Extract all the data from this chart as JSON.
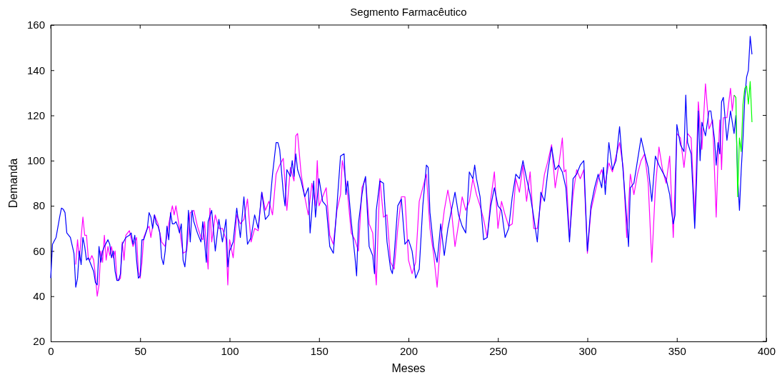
{
  "chart_data": {
    "type": "line",
    "title": "Segmento Farmacêutico",
    "xlabel": "Meses",
    "ylabel": "Demanda",
    "xlim": [
      0,
      400
    ],
    "xticks": [
      0,
      50,
      100,
      150,
      200,
      250,
      300,
      350,
      400
    ],
    "ylim": [
      20,
      160
    ],
    "yticks": [
      20,
      40,
      60,
      80,
      100,
      120,
      140,
      160
    ],
    "grid": false,
    "marker": "none",
    "line_style": "solid",
    "series": [
      {
        "color": "#ff00ff",
        "x": [
          14,
          15,
          16,
          17,
          18,
          19,
          20,
          21,
          22,
          23,
          24,
          25,
          26,
          27,
          28,
          29,
          30,
          31,
          32,
          33,
          34,
          35,
          36,
          37,
          38,
          39,
          40,
          41,
          42,
          44,
          46,
          48,
          49,
          50,
          51,
          52,
          54,
          55,
          56,
          58,
          60,
          62,
          64,
          66,
          68,
          69,
          70,
          72,
          74,
          76,
          78,
          80,
          82,
          84,
          85,
          86,
          88,
          89,
          90,
          92,
          94,
          96,
          98,
          99,
          100,
          102,
          104,
          106,
          108,
          110,
          112,
          114,
          116,
          118,
          120,
          122,
          124,
          126,
          128,
          130,
          131,
          132,
          134,
          136,
          137,
          138,
          140,
          142,
          144,
          146,
          148,
          149,
          150,
          152,
          154,
          156,
          158,
          160,
          162,
          163,
          164,
          166,
          168,
          170,
          172,
          174,
          176,
          178,
          180,
          182,
          184,
          186,
          188,
          190,
          192,
          194,
          196,
          198,
          200,
          202,
          204,
          206,
          208,
          210,
          212,
          214,
          216,
          218,
          220,
          222,
          224,
          226,
          228,
          230,
          232,
          234,
          236,
          238,
          240,
          242,
          244,
          246,
          248,
          250,
          252,
          254,
          256,
          258,
          260,
          262,
          264,
          266,
          268,
          270,
          272,
          274,
          276,
          278,
          280,
          282,
          284,
          286,
          287,
          288,
          290,
          292,
          294,
          296,
          298,
          300,
          302,
          304,
          306,
          308,
          310,
          312,
          314,
          316,
          318,
          320,
          322,
          324,
          326,
          328,
          330,
          332,
          334,
          336,
          338,
          340,
          342,
          344,
          346,
          348,
          350,
          352,
          354,
          356,
          358,
          360,
          362,
          364,
          366,
          368,
          370,
          372,
          373,
          374,
          375,
          376,
          378,
          380,
          381,
          382
        ],
        "values": [
          54,
          65,
          56,
          66,
          75,
          67,
          67,
          57,
          56,
          58,
          56,
          49,
          40,
          45,
          60,
          55,
          67,
          56,
          62,
          58,
          62,
          57,
          60,
          48,
          47,
          48,
          64,
          56,
          67,
          69,
          62,
          66,
          51,
          48,
          55,
          66,
          70,
          71,
          66,
          76,
          72,
          64,
          62,
          72,
          80,
          76,
          80,
          70,
          59,
          60,
          77,
          78,
          71,
          66,
          65,
          73,
          52,
          79,
          64,
          76,
          70,
          70,
          65,
          45,
          65,
          57,
          76,
          72,
          74,
          83,
          64,
          70,
          69,
          86,
          78,
          82,
          76,
          94,
          98,
          101,
          90,
          78,
          97,
          91,
          111,
          112,
          94,
          84,
          76,
          90,
          80,
          100,
          80,
          84,
          88,
          67,
          63,
          78,
          85,
          100,
          96,
          85,
          68,
          65,
          60,
          88,
          92,
          72,
          68,
          45,
          92,
          75,
          76,
          55,
          52,
          70,
          84,
          84,
          56,
          50,
          55,
          82,
          88,
          94,
          70,
          59,
          44,
          65,
          78,
          87,
          78,
          62,
          72,
          84,
          78,
          82,
          92,
          85,
          80,
          74,
          66,
          83,
          95,
          70,
          82,
          76,
          71,
          72,
          92,
          86,
          98,
          82,
          95,
          70,
          70,
          82,
          94,
          100,
          107,
          88,
          98,
          110,
          95,
          96,
          66,
          85,
          96,
          92,
          96,
          59,
          78,
          85,
          92,
          96,
          90,
          99,
          95,
          102,
          108,
          97,
          66,
          94,
          85,
          94,
          100,
          103,
          90,
          55,
          88,
          106,
          96,
          90,
          102,
          66,
          112,
          110,
          97,
          112,
          110,
          75,
          126,
          105,
          134,
          114,
          118,
          75,
          100,
          118,
          96,
          119,
          119,
          132,
          122,
          129
        ]
      },
      {
        "color": "#0000ff",
        "x": [
          0,
          1,
          3,
          5,
          6,
          7,
          8,
          9,
          11,
          13,
          14,
          15,
          16,
          17,
          18,
          19,
          20,
          21,
          22,
          23,
          24,
          25,
          26,
          27,
          28,
          29,
          30,
          32,
          33,
          34,
          35,
          36,
          37,
          38,
          39,
          40,
          42,
          44,
          45,
          46,
          47,
          48,
          49,
          50,
          51,
          52,
          54,
          55,
          56,
          57,
          58,
          59,
          60,
          61,
          62,
          63,
          64,
          65,
          66,
          67,
          68,
          69,
          70,
          71,
          72,
          73,
          74,
          75,
          76,
          77,
          78,
          79,
          80,
          82,
          84,
          85,
          86,
          87,
          88,
          90,
          92,
          94,
          96,
          98,
          99,
          100,
          102,
          104,
          106,
          108,
          110,
          112,
          114,
          116,
          118,
          120,
          122,
          124,
          126,
          127,
          128,
          130,
          131,
          132,
          134,
          135,
          136,
          137,
          138,
          140,
          142,
          144,
          145,
          146,
          147,
          148,
          150,
          152,
          154,
          156,
          158,
          160,
          162,
          164,
          165,
          166,
          168,
          170,
          171,
          172,
          174,
          175,
          176,
          178,
          180,
          181,
          182,
          184,
          186,
          188,
          190,
          191,
          192,
          194,
          196,
          198,
          200,
          202,
          204,
          206,
          208,
          210,
          211,
          212,
          214,
          216,
          218,
          220,
          222,
          224,
          226,
          228,
          230,
          232,
          234,
          236,
          237,
          238,
          240,
          242,
          244,
          246,
          248,
          250,
          252,
          254,
          256,
          258,
          260,
          262,
          264,
          266,
          268,
          270,
          272,
          274,
          276,
          278,
          280,
          282,
          284,
          286,
          288,
          290,
          292,
          294,
          296,
          298,
          300,
          302,
          304,
          306,
          308,
          309,
          310,
          312,
          314,
          316,
          318,
          320,
          322,
          323,
          324,
          326,
          328,
          330,
          332,
          334,
          336,
          338,
          340,
          342,
          344,
          346,
          347,
          348,
          349,
          350,
          352,
          354,
          355,
          356,
          358,
          360,
          361,
          362,
          363,
          364,
          366,
          368,
          369,
          371,
          372,
          373,
          374,
          375,
          376,
          378,
          380,
          382,
          383,
          384,
          385,
          386,
          387,
          388,
          389,
          390,
          391,
          392
        ],
        "values": [
          48,
          63,
          66,
          75,
          79,
          78.5,
          77,
          68,
          66,
          59,
          44,
          48,
          60,
          54,
          66,
          62,
          56,
          57,
          55,
          53,
          51,
          46,
          45,
          62,
          55,
          60,
          62,
          65,
          63,
          57,
          60,
          51,
          47,
          47,
          50,
          63,
          66,
          67,
          68,
          63,
          67,
          56,
          48,
          49,
          65,
          65,
          70,
          77,
          75,
          70,
          76,
          72,
          71,
          68,
          57,
          54,
          60,
          71,
          65,
          77,
          72,
          72,
          73,
          71,
          68,
          72,
          56,
          53,
          62,
          78,
          64,
          78,
          73,
          68,
          64,
          73,
          64,
          55,
          73,
          78,
          60,
          74,
          64,
          74,
          53,
          60,
          64,
          79,
          66,
          84,
          63,
          66,
          76,
          70,
          86,
          74,
          76,
          94,
          108,
          108,
          105,
          86,
          80,
          96,
          93,
          100,
          93,
          103,
          96,
          91,
          84,
          88,
          68,
          78,
          91,
          75,
          92,
          82,
          80,
          62,
          59,
          80,
          102,
          103,
          85,
          91,
          73,
          58,
          49,
          72,
          85,
          90,
          93,
          62,
          58,
          50,
          78,
          91,
          90,
          64,
          52,
          50,
          58,
          80,
          83,
          63,
          65,
          60,
          48,
          52,
          80,
          98,
          97,
          77,
          62,
          55,
          72,
          58,
          70,
          78,
          86,
          76,
          71,
          68,
          95,
          92,
          98,
          92,
          84,
          65,
          66,
          80,
          88,
          80,
          78,
          66,
          70,
          84,
          94,
          92,
          100,
          92,
          85,
          75,
          64,
          86,
          82,
          96,
          106,
          96,
          98,
          95,
          88,
          64,
          92,
          94,
          98,
          100,
          60,
          80,
          88,
          94,
          88,
          97,
          85,
          108,
          96,
          100,
          115,
          95,
          74,
          62,
          88,
          90,
          100,
          110,
          103,
          97,
          82,
          102,
          98,
          95,
          92,
          85,
          78,
          72,
          76,
          116,
          107,
          104,
          129,
          108,
          103,
          70,
          90,
          122,
          100,
          117,
          111,
          122,
          122,
          110,
          98,
          108,
          103,
          126,
          128,
          109,
          122,
          112,
          120,
          93,
          78,
          96,
          110,
          128,
          137,
          140,
          155,
          147
        ]
      },
      {
        "color": "#00ff00",
        "x": [
          382,
          383,
          384,
          385,
          386,
          387,
          388,
          389,
          390,
          391,
          392
        ],
        "values": [
          129,
          128,
          84,
          110,
          104,
          125,
          132,
          133,
          125,
          135,
          117
        ]
      }
    ]
  }
}
